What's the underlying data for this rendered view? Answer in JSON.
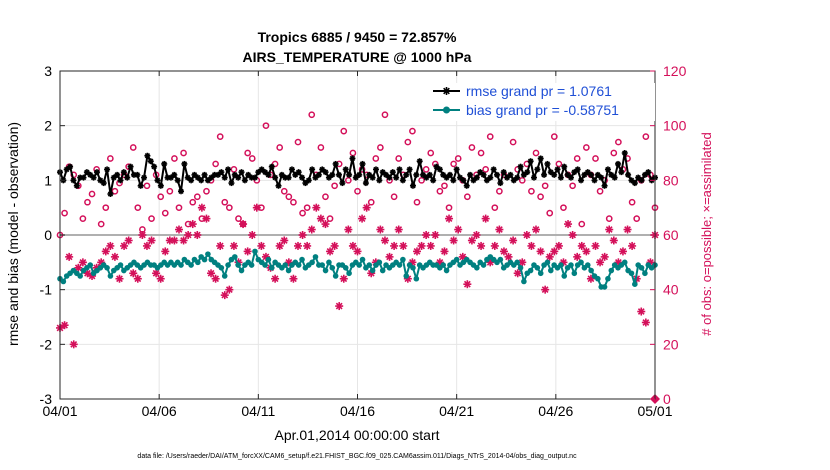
{
  "chart_data": {
    "type": "line",
    "title": "Tropics 6885 / 9450 = 72.857%",
    "subtitle": "AIRS_TEMPERATURE @ 1000 hPa",
    "xlabel": "Apr.01,2014 00:00:00 start",
    "ylabel_left": "rmse and bias (model - observation)",
    "ylabel_right": "# of obs: o=possible; ×=assimilated",
    "footnote": "data file: /Users/raeder/DAI/ATM_forcXX/CAM6_setup/f.e21.FHIST_BGC.f09_025.CAM6assim.011/Diags_NTrS_2014-04/obs_diag_output.nc",
    "xlim": [
      0,
      30
    ],
    "ylim_left": [
      -3,
      3
    ],
    "ylim_right": [
      0,
      120
    ],
    "x_ticks": [
      0,
      5,
      10,
      15,
      20,
      25,
      30
    ],
    "x_tick_labels": [
      "04/01",
      "04/06",
      "04/11",
      "04/16",
      "04/21",
      "04/26",
      "05/01"
    ],
    "y_left_ticks": [
      -3,
      -2,
      -1,
      0,
      1,
      2,
      3
    ],
    "y_left_tick_labels": [
      "-3",
      "-2",
      "-1",
      "0",
      "1",
      "2",
      "3"
    ],
    "y_right_ticks": [
      0,
      20,
      40,
      60,
      80,
      100,
      120
    ],
    "y_right_tick_labels": [
      "0",
      "20",
      "40",
      "60",
      "80",
      "100",
      "120"
    ],
    "colors": {
      "rmse": "#000000",
      "bias": "#008080",
      "obs": "#d4105a",
      "legend_text": "#1f4fd6",
      "zero_line": "#b0b0b0"
    },
    "legend": {
      "position": "top-right",
      "entries": [
        "rmse grand pr = 1.0761",
        "bias grand pr = -0.58751"
      ]
    },
    "series": [
      {
        "name": "rmse",
        "axis": "left",
        "values": [
          1.15,
          1.0,
          1.2,
          1.25,
          1.0,
          0.9,
          1.05,
          1.05,
          1.15,
          1.1,
          1.05,
          1.15,
          1.0,
          0.95,
          1.2,
          0.75,
          1.05,
          1.1,
          1.0,
          1.15,
          1.05,
          1.25,
          1.1,
          1.1,
          0.9,
          1.05,
          1.45,
          1.35,
          1.25,
          1.0,
          0.9,
          1.3,
          1.05,
          1.05,
          1.1,
          1.0,
          0.8,
          1.3,
          1.05,
          1.0,
          1.1,
          1.05,
          1.0,
          1.1,
          1.0,
          1.05,
          1.1,
          1.1,
          1.15,
          1.05,
          1.2,
          0.95,
          1.1,
          1.05,
          1.15,
          1.0,
          1.1,
          1.05,
          1.05,
          1.15,
          1.2,
          1.15,
          1.1,
          1.25,
          1.05,
          0.9,
          1.1,
          1.05,
          1.05,
          1.2,
          1.1,
          1.15,
          1.05,
          0.95,
          1.0,
          1.2,
          1.05,
          1.1,
          1.2,
          1.15,
          1.05,
          1.1,
          1.3,
          1.1,
          0.95,
          1.2,
          1.1,
          1.4,
          1.05,
          1.1,
          1.3,
          0.95,
          1.1,
          1.05,
          1.2,
          1.0,
          1.15,
          1.1,
          1.05,
          1.15,
          1.05,
          1.2,
          1.0,
          1.1,
          1.2,
          0.9,
          1.1,
          1.35,
          1.1,
          1.05,
          1.1,
          1.0,
          1.25,
          1.2,
          1.1,
          1.05,
          1.1,
          1.0,
          1.2,
          1.05,
          1.0,
          0.9,
          1.1,
          1.0,
          1.05,
          1.15,
          1.1,
          1.0,
          1.05,
          1.2,
          1.1,
          0.95,
          1.15,
          1.05,
          1.1,
          1.0,
          1.05,
          1.25,
          1.1,
          1.15,
          1.35,
          1.05,
          1.2,
          1.4,
          1.1,
          1.3,
          1.15,
          1.1,
          1.2,
          1.05,
          1.25,
          1.1,
          1.05,
          1.15,
          1.2,
          1.0,
          1.1,
          1.15,
          1.1,
          1.0,
          1.1,
          1.05,
          0.9,
          1.2,
          1.1,
          1.05,
          1.3,
          1.15,
          1.5,
          1.1,
          1.0,
          0.95,
          1.05,
          1.0,
          1.1,
          1.15,
          1.0,
          1.05
        ]
      },
      {
        "name": "bias",
        "axis": "left",
        "values": [
          -0.8,
          -0.85,
          -0.75,
          -0.7,
          -0.65,
          -0.7,
          -0.75,
          -0.65,
          -0.6,
          -0.55,
          -0.7,
          -0.65,
          -0.6,
          -0.55,
          -0.6,
          -0.75,
          -0.65,
          -0.6,
          -0.55,
          -0.65,
          -0.6,
          -0.55,
          -0.5,
          -0.55,
          -0.6,
          -0.55,
          -0.5,
          -0.55,
          -0.55,
          -0.6,
          -0.55,
          -0.5,
          -0.55,
          -0.5,
          -0.55,
          -0.5,
          -0.55,
          -0.45,
          -0.5,
          -0.55,
          -0.45,
          -0.5,
          -0.4,
          -0.45,
          -0.35,
          -0.45,
          -0.5,
          -0.55,
          -0.6,
          -0.75,
          -0.55,
          -0.45,
          -0.4,
          -0.55,
          -0.65,
          -0.55,
          -0.5,
          -0.55,
          -0.3,
          -0.45,
          -0.5,
          -0.55,
          -0.45,
          -0.6,
          -0.5,
          -0.55,
          -0.6,
          -0.55,
          -0.65,
          -0.55,
          -0.5,
          -0.55,
          -0.45,
          -0.6,
          -0.55,
          -0.5,
          -0.4,
          -0.55,
          -0.55,
          -0.65,
          -0.5,
          -0.6,
          -0.75,
          -0.55,
          -0.55,
          -0.6,
          -0.7,
          -0.55,
          -0.5,
          -0.55,
          -0.45,
          -0.6,
          -0.55,
          -0.65,
          -0.55,
          -0.5,
          -0.65,
          -0.55,
          -0.6,
          -0.55,
          -0.5,
          -0.55,
          -0.45,
          -0.75,
          -0.55,
          -0.6,
          -0.8,
          -0.55,
          -0.6,
          -0.55,
          -0.5,
          -0.55,
          -0.55,
          -0.6,
          -0.55,
          -0.65,
          -0.55,
          -0.5,
          -0.45,
          -0.55,
          -0.5,
          -0.45,
          -0.5,
          -0.55,
          -0.6,
          -0.5,
          -0.55,
          -0.45,
          -0.4,
          -0.45,
          -0.5,
          -0.45,
          -0.6,
          -0.55,
          -0.5,
          -0.55,
          -0.5,
          -0.6,
          -0.85,
          -0.7,
          -0.65,
          -0.55,
          -0.6,
          -0.7,
          -0.55,
          -0.5,
          -0.65,
          -0.55,
          -0.6,
          -0.55,
          -0.75,
          -0.6,
          -0.55,
          -0.7,
          -0.55,
          -0.5,
          -0.6,
          -0.55,
          -0.65,
          -0.75,
          -0.8,
          -0.95,
          -0.95,
          -0.8,
          -0.65,
          -0.55,
          -0.6,
          -0.55,
          -0.5,
          -0.65,
          -0.7,
          -0.9,
          -0.55,
          -0.6,
          -0.7,
          -0.55,
          -0.6,
          -0.55
        ]
      },
      {
        "name": "obs_possible",
        "axis": "right",
        "marker": "o",
        "values": [
          60,
          68,
          85,
          82,
          78,
          66,
          72,
          75,
          84,
          64,
          70,
          88,
          76,
          79,
          82,
          85,
          92,
          70,
          62,
          78,
          66,
          82,
          74,
          68,
          76,
          88,
          70,
          90,
          64,
          72,
          74,
          66,
          76,
          80,
          86,
          96,
          72,
          70,
          84,
          66,
          64,
          90,
          88,
          80,
          70,
          100,
          82,
          86,
          92,
          76,
          74,
          72,
          94,
          68,
          70,
          104,
          82,
          92,
          74,
          66,
          78,
          86,
          98,
          80,
          90,
          76,
          84,
          82,
          72,
          88,
          92,
          104,
          80,
          74,
          88,
          82,
          94,
          98,
          72,
          80,
          84,
          90,
          86,
          76,
          78,
          70,
          86,
          88,
          80,
          74,
          92,
          82,
          90,
          84,
          96,
          70,
          76,
          82,
          104,
          94,
          84,
          80,
          86,
          76,
          90,
          74,
          78,
          68,
          96,
          86,
          70,
          82,
          78,
          88,
          64,
          92,
          82,
          88,
          76,
          80,
          66,
          90,
          94,
          84,
          88,
          72,
          66,
          80,
          96,
          82,
          70
        ]
      },
      {
        "name": "obs_assimilated",
        "axis": "right",
        "marker": "*",
        "values": [
          26,
          27,
          52,
          20,
          48,
          50,
          46,
          45,
          48,
          50,
          54,
          56,
          52,
          44,
          56,
          58,
          46,
          44,
          60,
          56,
          58,
          46,
          44,
          54,
          58,
          58,
          62,
          58,
          60,
          64,
          60,
          70,
          66,
          46,
          44,
          56,
          38,
          40,
          56,
          50,
          64,
          54,
          60,
          70,
          56,
          52,
          48,
          44,
          56,
          58,
          50,
          44,
          56,
          60,
          56,
          62,
          70,
          66,
          64,
          54,
          56,
          34,
          44,
          62,
          56,
          54,
          66,
          70,
          46,
          50,
          62,
          58,
          52,
          56,
          62,
          56,
          44,
          50,
          54,
          56,
          60,
          56,
          60,
          50,
          54,
          66,
          58,
          62,
          52,
          42,
          58,
          60,
          56,
          66,
          50,
          56,
          62,
          54,
          52,
          58,
          46,
          50,
          60,
          56,
          62,
          54,
          40,
          52,
          54,
          56,
          50,
          64,
          60,
          52,
          56,
          54,
          44,
          56,
          50,
          52,
          62,
          58,
          50,
          54,
          62,
          56,
          44,
          32,
          28,
          50,
          60
        ]
      }
    ]
  }
}
